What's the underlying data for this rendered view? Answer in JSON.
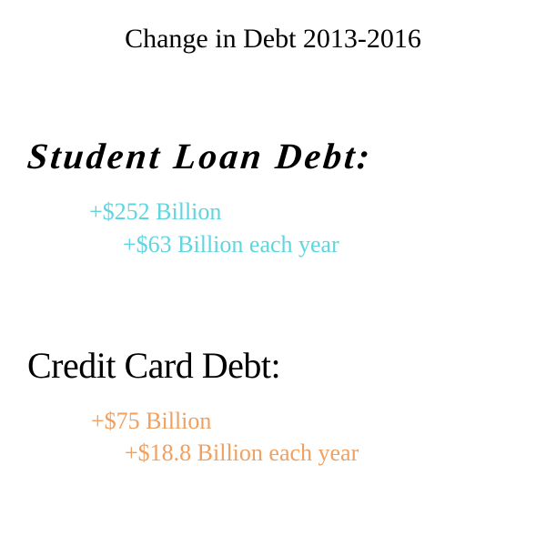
{
  "title": "Change in Debt 2013-2016",
  "colors": {
    "student": "#5fd5df",
    "credit": "#f0a060"
  },
  "student_loan": {
    "heading": "Student Loan Debt:",
    "total": "+$252 Billion",
    "per_year": "+$63 Billion each year"
  },
  "credit_card": {
    "heading": "Credit Card Debt:",
    "total": "+$75 Billion",
    "per_year": "+$18.8 Billion each year"
  }
}
